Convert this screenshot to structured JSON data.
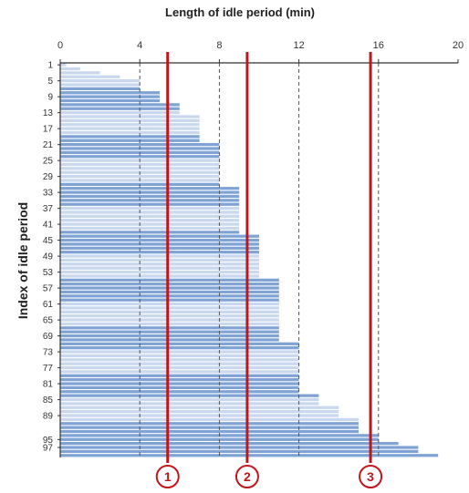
{
  "chart_data": {
    "type": "bar",
    "orientation": "horizontal",
    "title": "",
    "xlabel": "Length of idle period (min)",
    "ylabel": "Index of idle period",
    "xlim": [
      0,
      20
    ],
    "xticks": [
      0,
      4,
      8,
      12,
      16,
      20
    ],
    "gridlines_dashed_at": [
      4,
      8,
      12,
      16
    ],
    "ytick_labels": [
      "1",
      "5",
      "9",
      "13",
      "17",
      "21",
      "25",
      "29",
      "33",
      "37",
      "41",
      "45",
      "49",
      "53",
      "57",
      "61",
      "65",
      "69",
      "73",
      "77",
      "81",
      "85",
      "89",
      "95",
      "97"
    ],
    "x_axis_position": "top",
    "values": [
      0.3,
      1,
      2,
      3,
      4,
      4,
      4,
      5,
      5,
      5,
      6,
      6,
      6,
      7,
      7,
      7,
      7,
      7,
      7,
      7,
      8,
      8,
      8,
      8,
      8,
      8,
      8,
      8,
      8,
      8,
      8,
      9,
      9,
      9,
      9,
      9,
      9,
      9,
      9,
      9,
      9,
      9,
      9,
      10,
      10,
      10,
      10,
      10,
      10,
      10,
      10,
      10,
      10,
      10,
      11,
      11,
      11,
      11,
      11,
      11,
      11,
      11,
      11,
      11,
      11,
      11,
      11,
      11,
      11,
      11,
      12,
      12,
      12,
      12,
      12,
      12,
      12,
      12,
      12,
      12,
      12,
      12,
      12,
      13,
      13,
      13,
      14,
      14,
      14,
      15,
      15,
      15,
      15,
      16,
      16,
      17,
      18,
      18,
      19
    ],
    "markers": [
      {
        "label": "1",
        "x": 5.4
      },
      {
        "label": "2",
        "x": 9.4
      },
      {
        "label": "3",
        "x": 15.6
      }
    ],
    "colors": {
      "bar_dark": "#7fa3d4",
      "bar_light": "#c9d8ee",
      "marker": "#c0161c"
    }
  }
}
